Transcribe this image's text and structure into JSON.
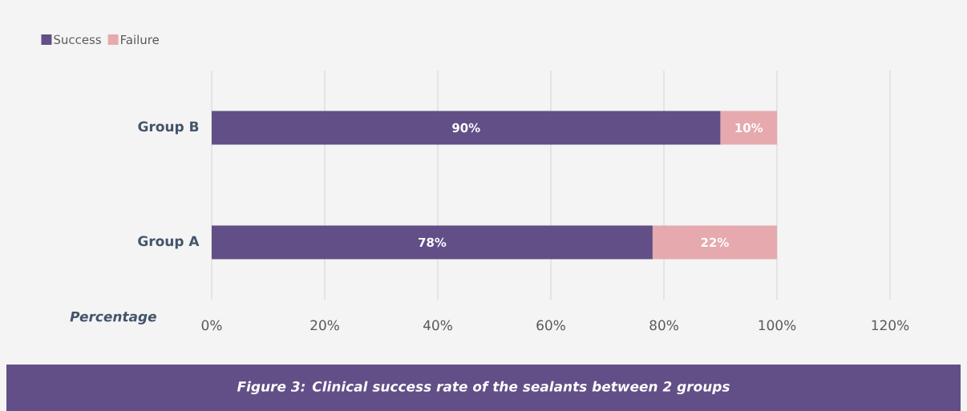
{
  "chart_data": {
    "type": "bar",
    "orientation": "horizontal",
    "stacked": true,
    "categories": [
      "Group B",
      "Group A"
    ],
    "series": [
      {
        "name": "Success",
        "color": "#624f87",
        "values": [
          90,
          78
        ],
        "value_labels": [
          "90%",
          "78%"
        ]
      },
      {
        "name": "Failure",
        "color": "#e6a9ad",
        "values": [
          10,
          22
        ],
        "value_labels": [
          "10%",
          "22%"
        ]
      }
    ],
    "xlabel": "Percentage",
    "xlim": [
      0,
      120
    ],
    "xticks": [
      {
        "value": 0,
        "label": "0%"
      },
      {
        "value": 20,
        "label": "20%"
      },
      {
        "value": 40,
        "label": "40%"
      },
      {
        "value": 60,
        "label": "60%"
      },
      {
        "value": 80,
        "label": "80%"
      },
      {
        "value": 100,
        "label": "100%"
      },
      {
        "value": 120,
        "label": "120%"
      }
    ],
    "grid": "x",
    "legend": "top left",
    "annotations": [
      "Figure 3: Clinical success rate of the sealants between 2 groups"
    ]
  }
}
